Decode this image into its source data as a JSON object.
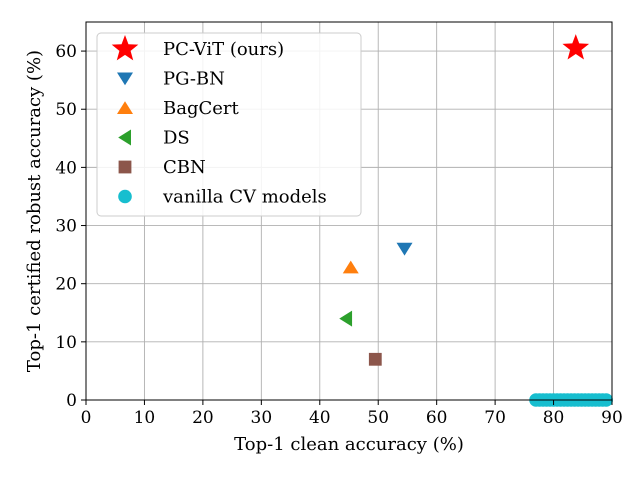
{
  "chart_data": {
    "type": "scatter",
    "xlabel": "Top-1 clean accuracy (%)",
    "ylabel": "Top-1 certified robust accuracy (%)",
    "xlim": [
      0,
      90
    ],
    "ylim": [
      0,
      65
    ],
    "xticks": [
      0,
      10,
      20,
      30,
      40,
      50,
      60,
      70,
      80,
      90
    ],
    "yticks": [
      0,
      10,
      20,
      30,
      40,
      50,
      60
    ],
    "grid": true,
    "legend_position": "upper-left",
    "series": [
      {
        "name": "PC-ViT (ours)",
        "marker": "star",
        "color": "#ff0000",
        "points": [
          {
            "x": 83.8,
            "y": 60.5
          }
        ]
      },
      {
        "name": "PG-BN",
        "marker": "triangle-down",
        "color": "#1f77b4",
        "points": [
          {
            "x": 54.5,
            "y": 26.0
          }
        ]
      },
      {
        "name": "BagCert",
        "marker": "triangle-up",
        "color": "#ff7f0e",
        "points": [
          {
            "x": 45.3,
            "y": 22.8
          }
        ]
      },
      {
        "name": "DS",
        "marker": "triangle-left",
        "color": "#2ca02c",
        "points": [
          {
            "x": 44.5,
            "y": 14.0
          }
        ]
      },
      {
        "name": "CBN",
        "marker": "square",
        "color": "#8c564b",
        "points": [
          {
            "x": 49.5,
            "y": 7.0
          }
        ]
      },
      {
        "name": "vanilla CV models",
        "marker": "circle",
        "color": "#17becf",
        "points": [
          {
            "x": 77.0,
            "y": 0
          },
          {
            "x": 77.6,
            "y": 0
          },
          {
            "x": 78.2,
            "y": 0
          },
          {
            "x": 78.8,
            "y": 0
          },
          {
            "x": 79.4,
            "y": 0
          },
          {
            "x": 80.0,
            "y": 0
          },
          {
            "x": 80.6,
            "y": 0
          },
          {
            "x": 81.2,
            "y": 0
          },
          {
            "x": 81.8,
            "y": 0
          },
          {
            "x": 82.4,
            "y": 0
          },
          {
            "x": 83.0,
            "y": 0
          },
          {
            "x": 83.6,
            "y": 0
          },
          {
            "x": 84.2,
            "y": 0
          },
          {
            "x": 84.8,
            "y": 0
          },
          {
            "x": 85.4,
            "y": 0
          },
          {
            "x": 86.0,
            "y": 0
          },
          {
            "x": 86.6,
            "y": 0
          },
          {
            "x": 87.2,
            "y": 0
          },
          {
            "x": 87.8,
            "y": 0
          },
          {
            "x": 88.4,
            "y": 0
          },
          {
            "x": 89.0,
            "y": 0
          }
        ]
      }
    ]
  }
}
